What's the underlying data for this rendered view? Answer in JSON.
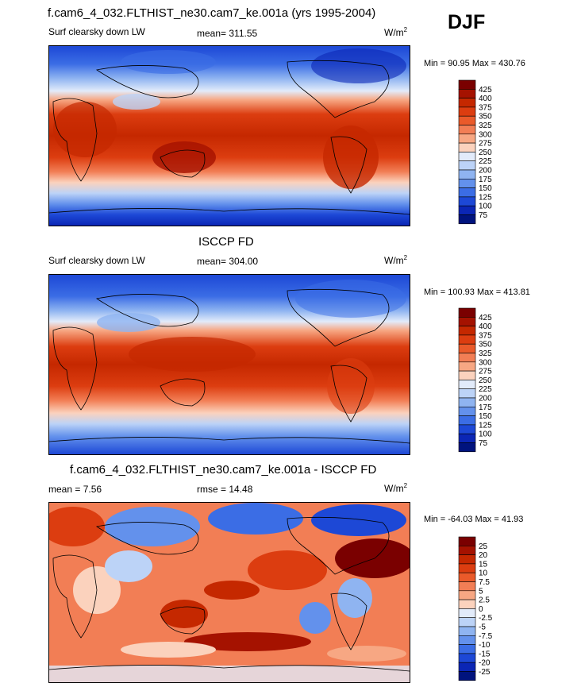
{
  "season": "DJF",
  "panels": [
    {
      "title": "f.cam6_4_032.FLTHIST_ne30.cam7_ke.001a (yrs 1995-2004)",
      "variable": "Surf clearsky down LW",
      "stat": "mean= 311.55",
      "units_base": "W/m",
      "units_sup": "2",
      "minmax": "Min =  90.95 Max = 430.76"
    },
    {
      "title": "ISCCP FD",
      "variable": "Surf clearsky down LW",
      "stat": "mean= 304.00",
      "units_base": "W/m",
      "units_sup": "2",
      "minmax": "Min = 100.93 Max = 413.81"
    },
    {
      "title": "f.cam6_4_032.FLTHIST_ne30.cam7_ke.001a - ISCCP FD",
      "variable": "mean =   7.56",
      "stat": "rmse =  14.48",
      "units_base": "W/m",
      "units_sup": "2",
      "minmax": "Min = -64.03 Max =  41.93"
    }
  ],
  "chart_data": [
    {
      "type": "heatmap",
      "title": "f.cam6_4_032.FLTHIST_ne30.cam7_ke.001a (yrs 1995-2004)",
      "subtitle": "Surf clearsky down LW",
      "units": "W/m2",
      "mean": 311.55,
      "min": 90.95,
      "max": 430.76,
      "colorbar_labels": [
        "425",
        "400",
        "375",
        "350",
        "325",
        "300",
        "275",
        "250",
        "225",
        "200",
        "175",
        "150",
        "125",
        "100",
        "75"
      ],
      "colorbar_colors": [
        "#7a0000",
        "#a51200",
        "#c52800",
        "#dc3d10",
        "#ea5a2a",
        "#f27e55",
        "#f7a783",
        "#fbd2bd",
        "#e2ebfa",
        "#bcd3f7",
        "#8fb4f1",
        "#6391ec",
        "#3b6de5",
        "#1d48d6",
        "#0b26b5",
        "#00137e"
      ]
    },
    {
      "type": "heatmap",
      "title": "ISCCP FD",
      "subtitle": "Surf clearsky down LW",
      "units": "W/m2",
      "mean": 304.0,
      "min": 100.93,
      "max": 413.81,
      "colorbar_labels": [
        "425",
        "400",
        "375",
        "350",
        "325",
        "300",
        "275",
        "250",
        "225",
        "200",
        "175",
        "150",
        "125",
        "100",
        "75"
      ],
      "colorbar_colors": [
        "#7a0000",
        "#a51200",
        "#c52800",
        "#dc3d10",
        "#ea5a2a",
        "#f27e55",
        "#f7a783",
        "#fbd2bd",
        "#e2ebfa",
        "#bcd3f7",
        "#8fb4f1",
        "#6391ec",
        "#3b6de5",
        "#1d48d6",
        "#0b26b5",
        "#00137e"
      ]
    },
    {
      "type": "heatmap",
      "title": "f.cam6_4_032.FLTHIST_ne30.cam7_ke.001a - ISCCP FD",
      "units": "W/m2",
      "mean": 7.56,
      "rmse": 14.48,
      "min": -64.03,
      "max": 41.93,
      "colorbar_labels": [
        "25",
        "20",
        "15",
        "10",
        "7.5",
        "5",
        "2.5",
        "0",
        "-2.5",
        "-5",
        "-7.5",
        "-10",
        "-15",
        "-20",
        "-25"
      ],
      "colorbar_colors": [
        "#7a0000",
        "#a51200",
        "#c52800",
        "#dc3d10",
        "#ea5a2a",
        "#f27e55",
        "#f7a783",
        "#fbd2bd",
        "#e2ebfa",
        "#bcd3f7",
        "#8fb4f1",
        "#6391ec",
        "#3b6de5",
        "#1d48d6",
        "#0b26b5",
        "#00137e"
      ]
    }
  ]
}
